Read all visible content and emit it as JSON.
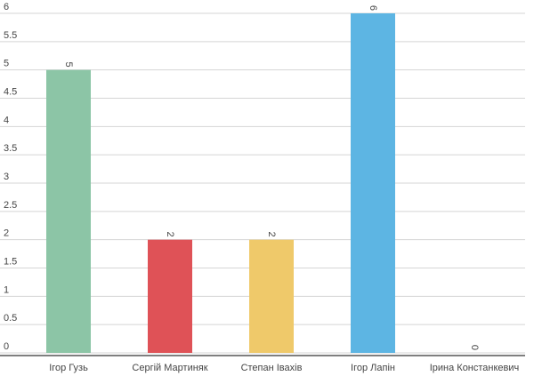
{
  "chart_data": {
    "type": "bar",
    "categories": [
      "Ігор Гузь",
      "Сергій Мартиняк",
      "Степан Івахів",
      "Ігор Лапін",
      "Ірина Констанкевич"
    ],
    "values": [
      5,
      2,
      2,
      6,
      0
    ],
    "colors": [
      "#8cc5a6",
      "#df5257",
      "#efc96a",
      "#5db5e3",
      "#9c9c9c"
    ],
    "ylim": [
      0,
      6
    ],
    "yticks": [
      0,
      0.5,
      1,
      1.5,
      2,
      2.5,
      3,
      3.5,
      4,
      4.5,
      5,
      5.5,
      6
    ],
    "grid": true
  }
}
